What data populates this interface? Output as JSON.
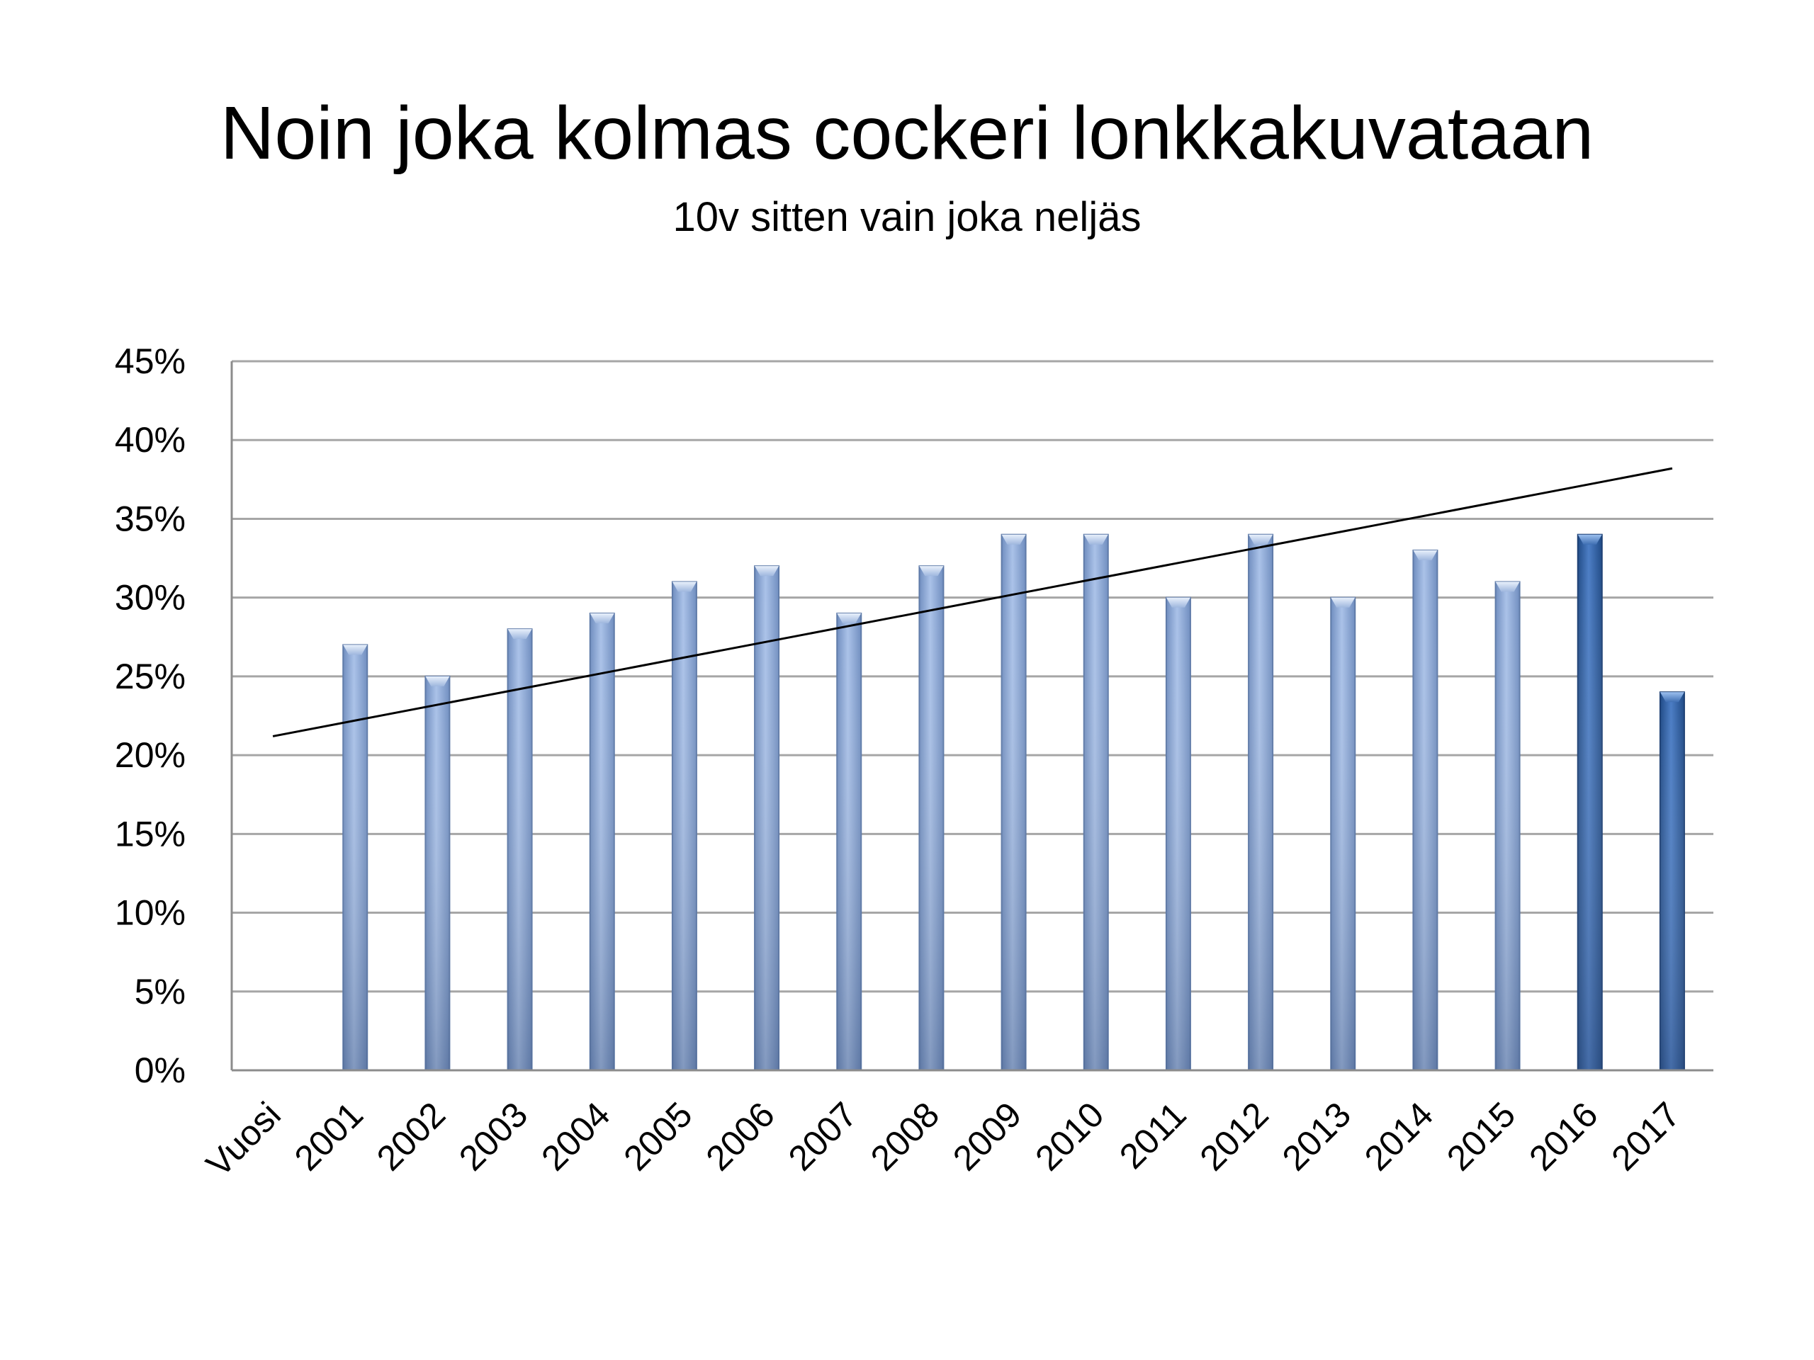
{
  "chart_data": {
    "type": "bar",
    "title": "Noin joka kolmas cockeri lonkkakuvataan",
    "subtitle": "10v sitten vain joka neljäs",
    "xlabel": "",
    "ylabel": "",
    "categories": [
      "Vuosi",
      "2001",
      "2002",
      "2003",
      "2004",
      "2005",
      "2006",
      "2007",
      "2008",
      "2009",
      "2010",
      "2011",
      "2012",
      "2013",
      "2014",
      "2015",
      "2016",
      "2017"
    ],
    "values": [
      null,
      27,
      25,
      28,
      29,
      31,
      32,
      29,
      32,
      34,
      34,
      30,
      34,
      30,
      33,
      31,
      34,
      24
    ],
    "highlighted_categories": [
      "2016",
      "2017"
    ],
    "ylim": [
      0,
      45
    ],
    "yticks": [
      "0%",
      "5%",
      "10%",
      "15%",
      "20%",
      "25%",
      "30%",
      "35%",
      "40%",
      "45%"
    ],
    "grid": true,
    "legend": "none",
    "trendline": {
      "type": "linear",
      "start": {
        "category": "Vuosi",
        "value": 21.2
      },
      "end": {
        "category": "2017",
        "value": 38.2
      }
    },
    "colors": {
      "bar": "#8eaadb",
      "bar_highlight": "#2e5d9e",
      "grid": "#a6a6a6",
      "trendline": "#000000"
    }
  }
}
